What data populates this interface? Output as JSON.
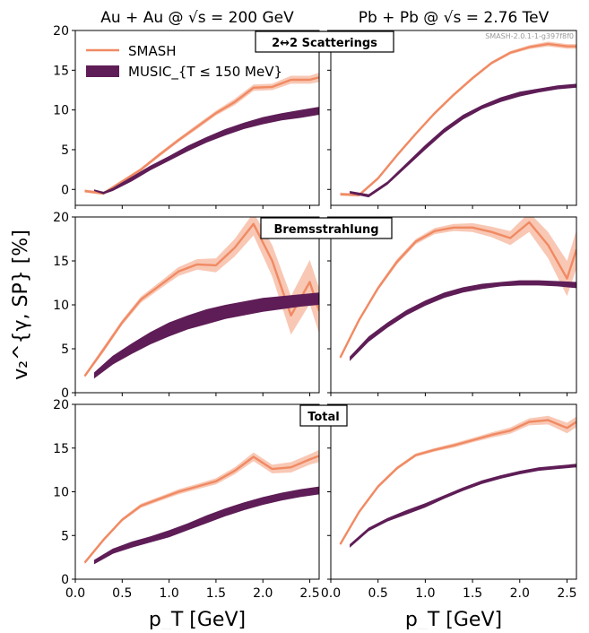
{
  "figure": {
    "column_titles": [
      "Au + Au @ √s = 200 GeV",
      "Pb + Pb @ √s = 2.76 TeV"
    ],
    "ylabel": "v₂^{γ, SP} [%]",
    "xlabel": "p_T [GeV]",
    "version_tag": "SMASH-2.0.1-1-g397f8f0",
    "legend": [
      {
        "name": "SMASH",
        "kind": "line"
      },
      {
        "name": "MUSIC_{T ≤ 150 MeV}",
        "kind": "band"
      }
    ],
    "row_labels": [
      "2↔2 Scatterings",
      "Bremsstrahlung",
      "Total"
    ],
    "colors": {
      "smash": "#f08a63",
      "smash_band": "#f6b59c",
      "music": "#5e1d56"
    }
  },
  "chart_data": [
    {
      "type": "line",
      "id": "scat_au",
      "row_label": "2↔2 Scatterings",
      "column": "Au + Au @ √s = 200 GeV",
      "xlim": [
        0,
        2.6
      ],
      "ylim": [
        -2,
        20
      ],
      "xticks": [
        0.0,
        0.5,
        1.0,
        1.5,
        2.0,
        2.5
      ],
      "yticks": [
        0,
        5,
        10,
        15,
        20
      ],
      "series": [
        {
          "name": "SMASH",
          "x": [
            0.1,
            0.3,
            0.5,
            0.7,
            0.9,
            1.1,
            1.3,
            1.5,
            1.7,
            1.9,
            2.1,
            2.3,
            2.5,
            2.6
          ],
          "y": [
            -0.2,
            -0.5,
            1.0,
            2.5,
            4.4,
            6.2,
            7.9,
            9.6,
            11.0,
            12.8,
            12.9,
            13.8,
            13.8,
            14.1
          ],
          "err": [
            0.2,
            0.2,
            0.2,
            0.2,
            0.25,
            0.25,
            0.3,
            0.3,
            0.4,
            0.4,
            0.4,
            0.5,
            0.5,
            0.6
          ]
        },
        {
          "name": "MUSIC_{T ≤ 150 MeV}",
          "x": [
            0.2,
            0.3,
            0.4,
            0.6,
            0.8,
            1.0,
            1.2,
            1.4,
            1.6,
            1.8,
            2.0,
            2.2,
            2.4,
            2.6
          ],
          "lower": [
            -0.2,
            -0.6,
            -0.2,
            1.0,
            2.4,
            3.6,
            4.8,
            5.9,
            6.8,
            7.6,
            8.2,
            8.7,
            9.0,
            9.4
          ],
          "upper": [
            0.0,
            -0.3,
            0.2,
            1.6,
            3.0,
            4.2,
            5.5,
            6.6,
            7.6,
            8.4,
            9.1,
            9.6,
            10.0,
            10.4
          ]
        }
      ]
    },
    {
      "type": "line",
      "id": "scat_pb",
      "row_label": "2↔2 Scatterings",
      "column": "Pb + Pb @ √s = 2.76 TeV",
      "xlim": [
        0,
        2.6
      ],
      "ylim": [
        -2,
        20
      ],
      "xticks": [
        0.0,
        0.5,
        1.0,
        1.5,
        2.0,
        2.5
      ],
      "yticks": [
        0,
        5,
        10,
        15,
        20
      ],
      "series": [
        {
          "name": "SMASH",
          "x": [
            0.1,
            0.3,
            0.5,
            0.7,
            0.9,
            1.1,
            1.3,
            1.5,
            1.7,
            1.9,
            2.1,
            2.3,
            2.5,
            2.6
          ],
          "y": [
            -0.6,
            -0.7,
            1.4,
            4.3,
            7.0,
            9.6,
            11.9,
            14.0,
            15.9,
            17.2,
            17.9,
            18.3,
            18.0,
            18.0
          ],
          "err": [
            0.2,
            0.2,
            0.2,
            0.2,
            0.2,
            0.2,
            0.2,
            0.2,
            0.2,
            0.2,
            0.25,
            0.3,
            0.3,
            0.3
          ]
        },
        {
          "name": "MUSIC_{T ≤ 150 MeV}",
          "x": [
            0.2,
            0.4,
            0.6,
            0.8,
            1.0,
            1.2,
            1.4,
            1.6,
            1.8,
            2.0,
            2.2,
            2.4,
            2.6
          ],
          "lower": [
            -0.5,
            -1.0,
            0.6,
            2.8,
            5.0,
            7.1,
            8.8,
            10.1,
            11.0,
            11.7,
            12.2,
            12.6,
            12.8
          ],
          "upper": [
            -0.2,
            -0.6,
            1.0,
            3.3,
            5.6,
            7.7,
            9.4,
            10.6,
            11.6,
            12.3,
            12.7,
            13.1,
            13.3
          ]
        }
      ]
    },
    {
      "type": "line",
      "id": "brems_au",
      "row_label": "Bremsstrahlung",
      "column": "Au + Au @ √s = 200 GeV",
      "xlim": [
        0,
        2.6
      ],
      "ylim": [
        0,
        20
      ],
      "xticks": [
        0.0,
        0.5,
        1.0,
        1.5,
        2.0,
        2.5
      ],
      "yticks": [
        0,
        5,
        10,
        15,
        20
      ],
      "series": [
        {
          "name": "SMASH",
          "x": [
            0.1,
            0.3,
            0.5,
            0.7,
            0.9,
            1.1,
            1.3,
            1.5,
            1.7,
            1.9,
            2.1,
            2.3,
            2.5,
            2.6
          ],
          "y": [
            1.9,
            4.9,
            8.0,
            10.6,
            12.2,
            13.8,
            14.6,
            14.5,
            16.5,
            19.2,
            15.0,
            8.8,
            12.6,
            9.3
          ],
          "err": [
            0.2,
            0.3,
            0.3,
            0.35,
            0.4,
            0.5,
            0.6,
            0.8,
            1.0,
            1.3,
            1.8,
            2.2,
            2.5,
            2.6
          ]
        },
        {
          "name": "MUSIC_{T ≤ 150 MeV}",
          "x": [
            0.2,
            0.4,
            0.6,
            0.8,
            1.0,
            1.2,
            1.4,
            1.6,
            1.8,
            2.0,
            2.2,
            2.4,
            2.6
          ],
          "lower": [
            1.6,
            3.2,
            4.4,
            5.5,
            6.4,
            7.2,
            7.8,
            8.4,
            8.8,
            9.2,
            9.5,
            9.8,
            10.0
          ],
          "upper": [
            2.3,
            4.2,
            5.6,
            6.9,
            8.0,
            8.8,
            9.5,
            10.0,
            10.4,
            10.8,
            11.0,
            11.2,
            11.4
          ]
        }
      ]
    },
    {
      "type": "line",
      "id": "brems_pb",
      "row_label": "Bremsstrahlung",
      "column": "Pb + Pb @ √s = 2.76 TeV",
      "xlim": [
        0,
        2.6
      ],
      "ylim": [
        0,
        20
      ],
      "xticks": [
        0.0,
        0.5,
        1.0,
        1.5,
        2.0,
        2.5
      ],
      "yticks": [
        0,
        5,
        10,
        15,
        20
      ],
      "series": [
        {
          "name": "SMASH",
          "x": [
            0.1,
            0.3,
            0.5,
            0.7,
            0.9,
            1.1,
            1.3,
            1.5,
            1.7,
            1.9,
            2.1,
            2.3,
            2.5,
            2.6
          ],
          "y": [
            4.0,
            8.3,
            11.9,
            14.9,
            17.2,
            18.4,
            18.8,
            18.8,
            18.3,
            17.6,
            19.4,
            16.8,
            13.0,
            16.3
          ],
          "err": [
            0.2,
            0.2,
            0.25,
            0.3,
            0.3,
            0.35,
            0.4,
            0.5,
            0.6,
            0.8,
            1.1,
            1.5,
            2.0,
            2.2
          ]
        },
        {
          "name": "MUSIC_{T ≤ 150 MeV}",
          "x": [
            0.2,
            0.4,
            0.6,
            0.8,
            1.0,
            1.2,
            1.4,
            1.6,
            1.8,
            2.0,
            2.2,
            2.4,
            2.6
          ],
          "lower": [
            3.6,
            5.8,
            7.4,
            8.8,
            9.9,
            10.8,
            11.4,
            11.8,
            12.1,
            12.2,
            12.2,
            12.1,
            11.9
          ],
          "upper": [
            4.1,
            6.4,
            8.0,
            9.4,
            10.5,
            11.4,
            12.0,
            12.4,
            12.6,
            12.8,
            12.8,
            12.7,
            12.6
          ]
        }
      ]
    },
    {
      "type": "line",
      "id": "total_au",
      "row_label": "Total",
      "column": "Au + Au @ √s = 200 GeV",
      "xlim": [
        0,
        2.6
      ],
      "ylim": [
        0,
        20
      ],
      "xticks": [
        0.0,
        0.5,
        1.0,
        1.5,
        2.0,
        2.5
      ],
      "yticks": [
        0,
        5,
        10,
        15,
        20
      ],
      "series": [
        {
          "name": "SMASH",
          "x": [
            0.1,
            0.3,
            0.5,
            0.7,
            0.9,
            1.1,
            1.3,
            1.5,
            1.7,
            1.9,
            2.1,
            2.3,
            2.5,
            2.6
          ],
          "y": [
            1.9,
            4.5,
            6.8,
            8.4,
            9.2,
            10.0,
            10.6,
            11.2,
            12.4,
            14.0,
            12.6,
            12.8,
            13.7,
            14.1
          ],
          "err": [
            0.2,
            0.2,
            0.2,
            0.25,
            0.25,
            0.3,
            0.3,
            0.35,
            0.4,
            0.5,
            0.5,
            0.6,
            0.6,
            0.7
          ]
        },
        {
          "name": "MUSIC_{T ≤ 150 MeV}",
          "x": [
            0.2,
            0.4,
            0.6,
            0.8,
            1.0,
            1.2,
            1.4,
            1.6,
            1.8,
            2.0,
            2.2,
            2.4,
            2.6
          ],
          "lower": [
            1.7,
            2.9,
            3.6,
            4.2,
            4.8,
            5.6,
            6.4,
            7.2,
            7.9,
            8.5,
            9.0,
            9.4,
            9.7
          ],
          "upper": [
            2.2,
            3.5,
            4.3,
            4.9,
            5.6,
            6.4,
            7.3,
            8.1,
            8.8,
            9.4,
            9.9,
            10.3,
            10.6
          ]
        }
      ]
    },
    {
      "type": "line",
      "id": "total_pb",
      "row_label": "Total",
      "column": "Pb + Pb @ √s = 2.76 TeV",
      "xlim": [
        0,
        2.6
      ],
      "ylim": [
        0,
        20
      ],
      "xticks": [
        0.0,
        0.5,
        1.0,
        1.5,
        2.0,
        2.5
      ],
      "yticks": [
        0,
        5,
        10,
        15,
        20
      ],
      "series": [
        {
          "name": "SMASH",
          "x": [
            0.1,
            0.3,
            0.5,
            0.7,
            0.9,
            1.1,
            1.3,
            1.5,
            1.7,
            1.9,
            2.1,
            2.3,
            2.5,
            2.6
          ],
          "y": [
            4.0,
            7.7,
            10.6,
            12.7,
            14.2,
            14.8,
            15.3,
            15.9,
            16.5,
            17.0,
            18.0,
            18.2,
            17.3,
            18.0
          ],
          "err": [
            0.15,
            0.15,
            0.2,
            0.2,
            0.2,
            0.2,
            0.25,
            0.25,
            0.3,
            0.35,
            0.4,
            0.5,
            0.6,
            0.6
          ]
        },
        {
          "name": "MUSIC_{T ≤ 150 MeV}",
          "x": [
            0.2,
            0.4,
            0.6,
            0.8,
            1.0,
            1.2,
            1.4,
            1.6,
            1.8,
            2.0,
            2.2,
            2.4,
            2.6
          ],
          "lower": [
            3.6,
            5.5,
            6.6,
            7.4,
            8.2,
            9.2,
            10.1,
            10.9,
            11.5,
            12.0,
            12.4,
            12.6,
            12.8
          ],
          "upper": [
            4.0,
            5.9,
            7.0,
            7.9,
            8.7,
            9.6,
            10.5,
            11.3,
            11.9,
            12.4,
            12.8,
            13.0,
            13.2
          ]
        }
      ]
    }
  ]
}
